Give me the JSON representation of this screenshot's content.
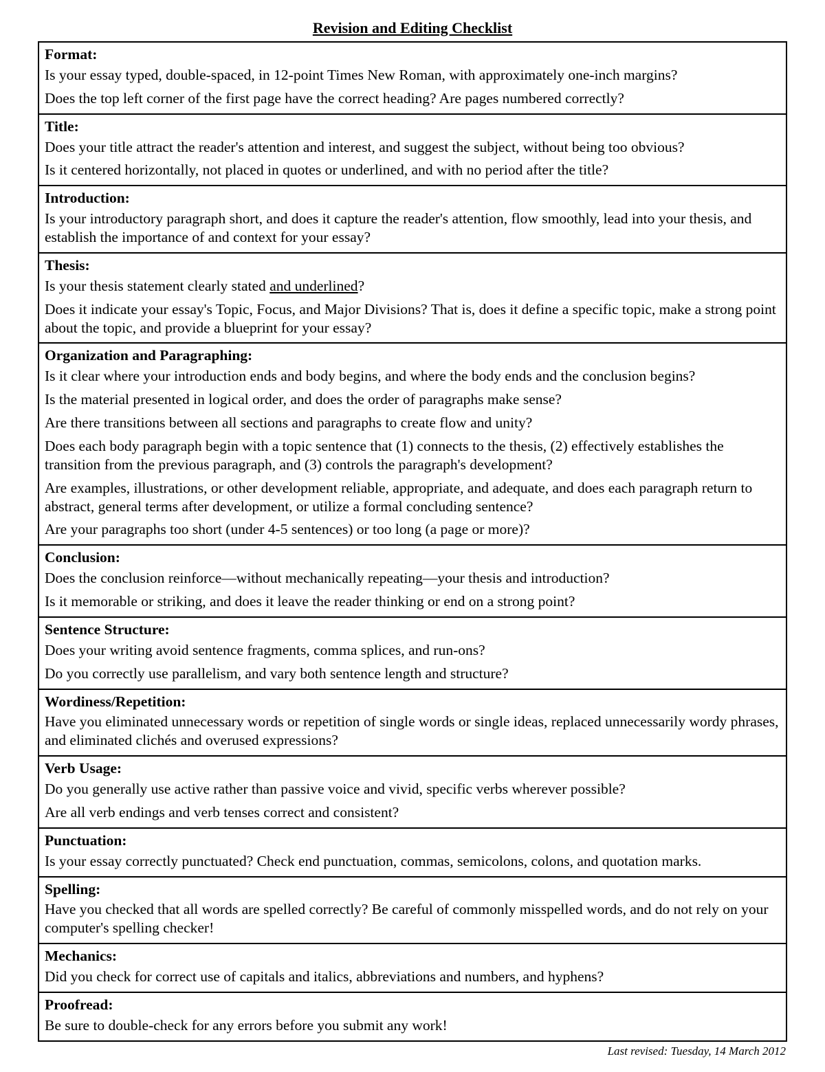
{
  "title": "Revision and Editing Checklist",
  "footer": "Last revised:  Tuesday, 14 March 2012",
  "sections": {
    "format": {
      "heading": "Format:",
      "q1": "Is your essay typed, double-spaced, in 12-point Times New Roman, with approximately one-inch margins?",
      "q2": "Does the top left corner of the first page have the correct heading? Are pages numbered correctly?"
    },
    "titleSec": {
      "heading": "Title:",
      "q1": "Does your title attract the reader's attention and interest, and suggest the subject, without being too obvious?",
      "q2": "Is it centered horizontally, not placed in quotes or underlined, and with no period after the title?"
    },
    "introduction": {
      "heading": "Introduction:",
      "q1": "Is your introductory paragraph short, and does it capture the reader's attention, flow smoothly, lead into your thesis, and establish the importance of and context for your essay?"
    },
    "thesis": {
      "heading": "Thesis:",
      "q1a": "Is your thesis statement clearly stated ",
      "q1b": "and underlined",
      "q1c": "?",
      "q2": "Does it indicate your essay's Topic, Focus, and Major Divisions?  That is, does it define a specific topic, make a strong point about the topic, and provide a blueprint for your essay?"
    },
    "organization": {
      "heading": "Organization and Paragraphing:",
      "q1": "Is it clear where your introduction ends and body begins, and where the body ends and the conclusion begins?",
      "q2": "Is the material presented in logical order, and does the order of paragraphs make sense?",
      "q3": "Are there transitions between all sections and paragraphs to create flow and unity?",
      "q4": "Does each body paragraph begin with a topic sentence that (1) connects to the thesis, (2) effectively establishes the transition from the previous paragraph, and (3) controls the paragraph's development?",
      "q5": "Are examples, illustrations, or other development reliable, appropriate, and adequate, and does each paragraph return to abstract, general terms after development, or utilize a formal concluding sentence?",
      "q6": "Are your paragraphs too short (under 4-5 sentences) or too long (a page or more)?"
    },
    "conclusion": {
      "heading": "Conclusion:",
      "q1": "Does the conclusion reinforce—without mechanically repeating—your thesis and introduction?",
      "q2": "Is it memorable or striking, and does it leave the reader thinking or end on a strong point?"
    },
    "sentence": {
      "heading": "Sentence Structure:",
      "q1": "Does your writing avoid sentence fragments, comma splices, and run-ons?",
      "q2": "Do you correctly use parallelism, and vary both sentence length and structure?"
    },
    "wordiness": {
      "heading": "Wordiness/Repetition:",
      "q1": "Have you eliminated unnecessary words or repetition of single words or single ideas, replaced unnecessarily wordy phrases, and eliminated clichés and overused expressions?"
    },
    "verb": {
      "heading": "Verb Usage:",
      "q1": "Do you generally use active rather than passive voice and vivid, specific verbs wherever possible?",
      "q2": "Are all verb endings and verb tenses correct and consistent?"
    },
    "punctuation": {
      "heading": "Punctuation:",
      "q1": "Is your essay correctly punctuated? Check end punctuation, commas, semicolons, colons, and quotation marks."
    },
    "spelling": {
      "heading": "Spelling:",
      "q1": "Have you checked that all words are spelled correctly? Be careful of commonly misspelled words, and do not rely on your computer's spelling checker!"
    },
    "mechanics": {
      "heading": "Mechanics:",
      "q1": "Did you check for correct use of capitals and italics, abbreviations and numbers, and hyphens?"
    },
    "proofread": {
      "heading": "Proofread:",
      "q1": "Be sure to double-check for any errors before you submit any work!"
    }
  }
}
